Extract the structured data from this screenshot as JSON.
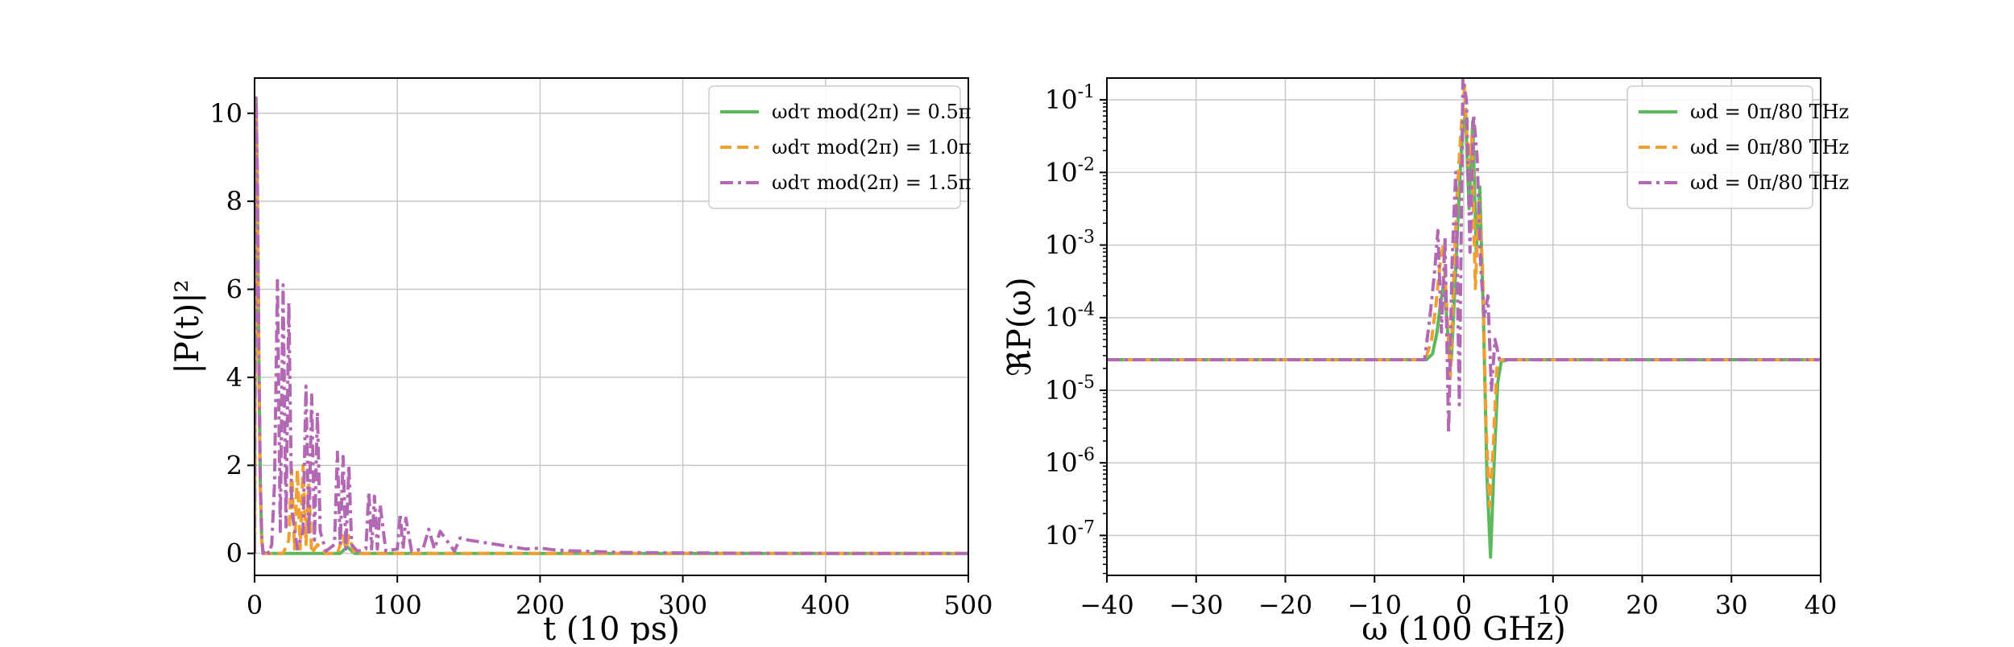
{
  "chart_data": [
    {
      "type": "line",
      "xlabel": "t (10 ps)",
      "ylabel": "|P(t)|²",
      "xlim": [
        0,
        500
      ],
      "ylim": [
        -0.5,
        10.8
      ],
      "xticks": [
        0,
        100,
        200,
        300,
        400,
        500
      ],
      "xtick_labels": [
        "0",
        "100",
        "200",
        "300",
        "400",
        "500"
      ],
      "yticks": [
        0,
        2,
        4,
        6,
        8,
        10
      ],
      "ytick_labels": [
        "0",
        "2",
        "4",
        "6",
        "8",
        "10"
      ],
      "grid": true,
      "legend_position": "top-right",
      "series": [
        {
          "name": "ωdτ mod(2π) = 0.5π",
          "color": "#5cb85c",
          "style": "solid",
          "x": [
            0,
            1,
            2,
            3,
            4,
            5,
            6,
            10,
            20,
            30,
            40,
            50,
            60,
            65,
            70,
            80,
            100,
            150,
            200,
            300,
            400,
            500
          ],
          "y": [
            0,
            10.3,
            8.4,
            4.5,
            1.6,
            0.3,
            0,
            0,
            0,
            0,
            0,
            0,
            0,
            0.15,
            0,
            0,
            0,
            0,
            0,
            0,
            0,
            0
          ]
        },
        {
          "name": "ωdτ mod(2π) = 1.0π",
          "color": "#f0a030",
          "style": "dashed",
          "x": [
            0,
            1,
            2,
            3,
            4,
            5,
            6,
            10,
            20,
            24,
            26,
            28,
            30,
            32,
            34,
            36,
            38,
            40,
            44,
            50,
            58,
            62,
            64,
            66,
            70,
            80,
            100,
            150,
            200,
            300,
            400,
            500
          ],
          "y": [
            0,
            10.2,
            8.2,
            4.3,
            1.5,
            0.3,
            0,
            0,
            0,
            0.3,
            1.9,
            0.1,
            1.9,
            0.1,
            2.0,
            0.2,
            1.6,
            0.0,
            0.2,
            0,
            0,
            0.4,
            0.1,
            0.4,
            0,
            0,
            0,
            0,
            0,
            0,
            0,
            0
          ]
        },
        {
          "name": "ωdτ mod(2π) = 1.5π",
          "color": "#b368b3",
          "style": "dashdot",
          "x": [
            0,
            1,
            2,
            3,
            4,
            5,
            6,
            8,
            10,
            12,
            14,
            16,
            18,
            20,
            22,
            24,
            26,
            30,
            34,
            36,
            38,
            40,
            42,
            44,
            46,
            50,
            56,
            58,
            60,
            62,
            64,
            66,
            68,
            72,
            78,
            80,
            82,
            84,
            86,
            88,
            92,
            100,
            102,
            104,
            106,
            110,
            118,
            122,
            126,
            130,
            140,
            144,
            150,
            160,
            170,
            180,
            190,
            200,
            210,
            220,
            240,
            260,
            300,
            400,
            500
          ],
          "y": [
            0,
            10.35,
            8.5,
            4.6,
            1.7,
            0.4,
            0,
            0.1,
            0,
            0.2,
            1.6,
            6.2,
            0.5,
            6.1,
            0.6,
            5.7,
            1.0,
            0.1,
            0.5,
            3.8,
            0.4,
            3.6,
            0.3,
            3.2,
            0.5,
            0.05,
            0.2,
            2.3,
            0.2,
            2.2,
            0.1,
            2.0,
            0.2,
            0.05,
            0.1,
            1.4,
            0.1,
            1.3,
            0.1,
            1.1,
            0.05,
            0.1,
            0.9,
            0.1,
            0.8,
            0.05,
            0.1,
            0.55,
            0.1,
            0.5,
            0.05,
            0.35,
            0.3,
            0.25,
            0.2,
            0.15,
            0.1,
            0.12,
            0.08,
            0.06,
            0.04,
            0.02,
            0.01,
            0,
            0
          ]
        }
      ]
    },
    {
      "type": "line",
      "xlabel": "ω (100 GHz)",
      "ylabel": "ℜP(ω)",
      "y_scale": "log",
      "xlim": [
        -40,
        40
      ],
      "ylim_log10": [
        -7.55,
        -0.7
      ],
      "xticks": [
        -40,
        -30,
        -20,
        -10,
        0,
        10,
        20,
        30,
        40
      ],
      "xtick_labels": [
        "−40",
        "−30",
        "−20",
        "−10",
        "0",
        "10",
        "20",
        "30",
        "40"
      ],
      "yticks_log10": [
        -7,
        -6,
        -5,
        -4,
        -3,
        -2,
        -1
      ],
      "ytick_labels": [
        "10-7",
        "10-6",
        "10-5",
        "10-4",
        "10-3",
        "10-2",
        "10-1"
      ],
      "grid": true,
      "legend_position": "top-right",
      "series": [
        {
          "name": "ωd = 0π/80 THz",
          "color": "#5cb85c",
          "style": "solid",
          "x": [
            -40,
            -4.2,
            -3.5,
            -3.0,
            -2.6,
            -2.2,
            -1.8,
            -1.4,
            -1.0,
            -0.6,
            -0.2,
            0.2,
            0.6,
            1.0,
            1.4,
            1.8,
            2.2,
            2.6,
            3.0,
            3.4,
            3.8,
            4.2,
            5,
            40
          ],
          "log10_y": [
            -4.58,
            -4.58,
            -4.5,
            -4.2,
            -3.8,
            -3.5,
            -4.2,
            -4.6,
            -3.6,
            -2.5,
            -1.5,
            -1.2,
            -2.5,
            -1.3,
            -3.1,
            -2.2,
            -4.0,
            -6.2,
            -7.3,
            -6.0,
            -4.9,
            -4.6,
            -4.58,
            -4.58
          ]
        },
        {
          "name": "ωd = 0π/80 THz",
          "color": "#f0a030",
          "style": "dashed",
          "x": [
            -40,
            -4.3,
            -3.6,
            -3.1,
            -2.7,
            -2.3,
            -1.9,
            -1.5,
            -1.1,
            -0.7,
            -0.3,
            0.1,
            0.5,
            0.9,
            1.3,
            1.7,
            2.1,
            2.5,
            2.9,
            3.3,
            3.7,
            4.3,
            5,
            40
          ],
          "log10_y": [
            -4.58,
            -4.58,
            -4.3,
            -3.8,
            -3.3,
            -3.0,
            -3.9,
            -4.8,
            -3.4,
            -2.2,
            -1.4,
            -0.8,
            -1.9,
            -1.5,
            -3.6,
            -2.4,
            -3.3,
            -5.5,
            -6.6,
            -5.8,
            -4.7,
            -4.58,
            -4.58,
            -4.58
          ]
        },
        {
          "name": "ωd = 0π/80 THz",
          "color": "#b368b3",
          "style": "dashdot",
          "x": [
            -40,
            -4.4,
            -3.8,
            -3.3,
            -2.9,
            -2.5,
            -2.1,
            -1.7,
            -1.3,
            -0.9,
            -0.5,
            -0.1,
            0.3,
            0.7,
            1.1,
            1.5,
            1.9,
            2.3,
            2.7,
            3.1,
            3.5,
            4.0,
            5,
            40
          ],
          "log10_y": [
            -4.58,
            -4.58,
            -4.0,
            -3.4,
            -2.8,
            -4.2,
            -2.9,
            -5.6,
            -3.2,
            -2.0,
            -5.2,
            -0.7,
            -1.0,
            -3.1,
            -1.2,
            -1.8,
            -3.3,
            -4.0,
            -3.7,
            -5.0,
            -4.3,
            -4.58,
            -4.58,
            -4.58
          ]
        }
      ]
    }
  ]
}
